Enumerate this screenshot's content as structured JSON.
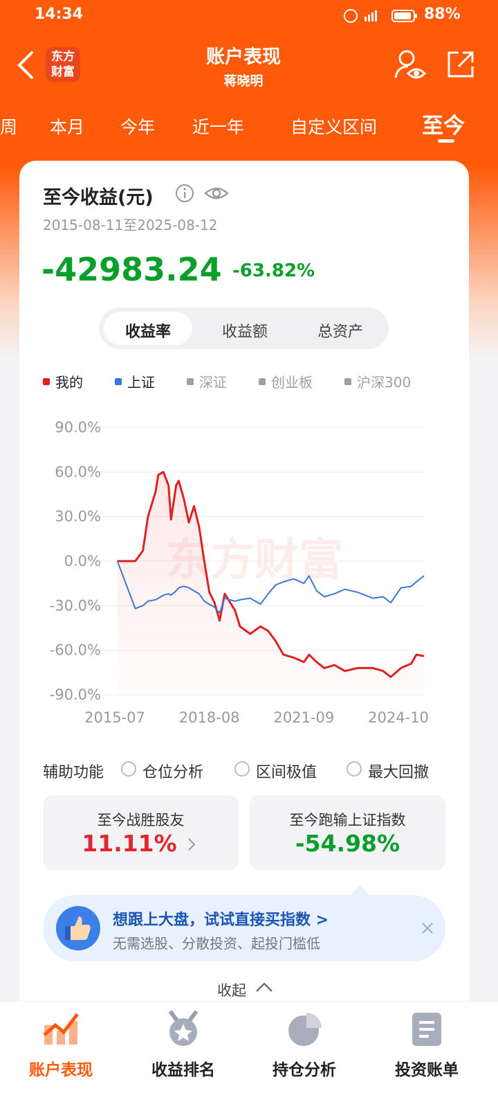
{
  "status_bar": {
    "time": "14:34",
    "battery": "88%"
  },
  "header": {
    "title": "账户表现",
    "subtitle": "蒋晓明",
    "logo": [
      "东方",
      "财富"
    ]
  },
  "tabs": [
    "周",
    "本月",
    "今年",
    "近一年",
    "自定义区间",
    "至今"
  ],
  "summary": {
    "title": "至今收益(元)",
    "date_range": "2015-08-11至2025-08-12",
    "amount": "-42983.24",
    "percent": "-63.82%"
  },
  "segments": [
    "收益率",
    "收益额",
    "总资产"
  ],
  "chart_data": {
    "type": "line",
    "watermark": "东方财富",
    "x": [
      "2015-08",
      "2016-03",
      "2016-06",
      "2016-08",
      "2016-11",
      "2016-12",
      "2017-02",
      "2017-04",
      "2017-05",
      "2017-07",
      "2017-08",
      "2017-10",
      "2017-12",
      "2018-02",
      "2018-04",
      "2018-06",
      "2018-08",
      "2018-10",
      "2018-12",
      "2019-02",
      "2019-06",
      "2019-08",
      "2019-12",
      "2020-04",
      "2020-07",
      "2020-10",
      "2021-01",
      "2021-05",
      "2021-09",
      "2021-11",
      "2022-02",
      "2022-05",
      "2022-09",
      "2023-01",
      "2023-06",
      "2023-12",
      "2024-04",
      "2024-07",
      "2024-11",
      "2025-03",
      "2025-05",
      "2025-08"
    ],
    "series": [
      {
        "name": "我的",
        "color": "#e02020",
        "values": [
          0,
          0,
          7,
          30,
          47,
          58,
          60,
          51,
          28,
          51,
          54,
          42,
          26,
          37,
          23,
          0,
          -21,
          -28,
          -40,
          -22,
          -33,
          -44,
          -49,
          -44,
          -47,
          -54,
          -63,
          -65,
          -68,
          -63,
          -68,
          -72,
          -70,
          -74,
          -72,
          -72,
          -74,
          -78,
          -72,
          -69,
          -63,
          -64
        ]
      },
      {
        "name": "上证",
        "color": "#3a78d8",
        "values": [
          0,
          -32,
          -30,
          -27,
          -26,
          -25,
          -23,
          -22,
          -23,
          -20,
          -18,
          -17,
          -18,
          -20,
          -22,
          -27,
          -29,
          -31,
          -35,
          -25,
          -27,
          -26,
          -25,
          -29,
          -22,
          -16,
          -14,
          -12,
          -15,
          -10,
          -20,
          -24,
          -22,
          -19,
          -21,
          -25,
          -24,
          -28,
          -18,
          -17,
          -14,
          -10
        ]
      }
    ],
    "inactive_legend": [
      "深证",
      "创业板",
      "沪深300"
    ],
    "inactive_color": "#a0a0a0",
    "xlim": [
      "2015-07",
      "2025-08"
    ],
    "xticks": [
      "2015-07",
      "2018-08",
      "2021-09",
      "2024-10"
    ],
    "ylim": [
      -90,
      90
    ],
    "yticks": [
      {
        "value": 90,
        "label": "90.0%"
      },
      {
        "value": 60,
        "label": "60.0%"
      },
      {
        "value": 30,
        "label": "30.0%"
      },
      {
        "value": 0,
        "label": "0.0%"
      },
      {
        "value": -30,
        "label": "-30.0%"
      },
      {
        "value": -60,
        "label": "-60.0%"
      },
      {
        "value": -90,
        "label": "-90.0%"
      }
    ],
    "grid": true
  },
  "tools": {
    "label": "辅助功能",
    "options": [
      "仓位分析",
      "区间极值",
      "最大回撤"
    ]
  },
  "stats": [
    {
      "label": "至今战胜股友",
      "value": "11.11%"
    },
    {
      "label": "至今跑输上证指数",
      "value": "-54.98%"
    }
  ],
  "banner": {
    "title": "想跟上大盘，试试直接买指数 >",
    "text": "无需选股、分散投资、起投门槛低"
  },
  "collapse": "收起",
  "nav": [
    "账户表现",
    "收益排名",
    "持仓分析",
    "投资账单"
  ]
}
